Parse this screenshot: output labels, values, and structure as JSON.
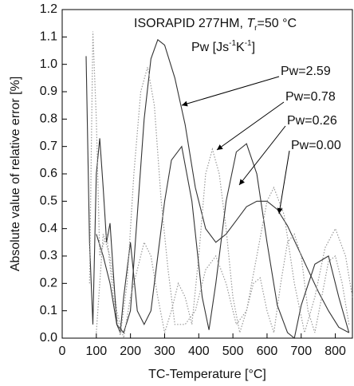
{
  "chart_data": {
    "type": "line",
    "title_parts": [
      "ISORAPID 277HM, ",
      "T",
      "r",
      "=50 °C"
    ],
    "subtitle_parts": [
      "Pw [Js",
      "-1",
      "K",
      "-1",
      "]"
    ],
    "x_label": "TC-Temperature [°C]",
    "y_label": "Absolute value of relative error [%]",
    "xlim": [
      0,
      850
    ],
    "ylim": [
      0,
      1.2
    ],
    "xticks": [
      0,
      100,
      200,
      300,
      400,
      500,
      600,
      700,
      800
    ],
    "yticks": [
      {
        "value": 0,
        "label": "0.0"
      },
      {
        "value": 0.1,
        "label": "0.1"
      },
      {
        "value": 0.2,
        "label": "0.2"
      },
      {
        "value": 0.3,
        "label": "0.3"
      },
      {
        "value": 0.4,
        "label": "0.4"
      },
      {
        "value": 0.5,
        "label": "0.5"
      },
      {
        "value": 0.6,
        "label": "0.6"
      },
      {
        "value": 0.7,
        "label": "0.7"
      },
      {
        "value": 0.8,
        "label": "0.8"
      },
      {
        "value": 0.9,
        "label": "0.9"
      },
      {
        "value": 1.0,
        "label": "1.0"
      },
      {
        "value": 1.1,
        "label": "1.1"
      },
      {
        "value": 1.2,
        "label": "1.2"
      }
    ],
    "series": [
      {
        "name": "Pw=2.59",
        "color": "#333333",
        "dash": "solid",
        "x": [
          100,
          120,
          140,
          160,
          180,
          200,
          220,
          240,
          260,
          280,
          300,
          330,
          360,
          390,
          420,
          450,
          480,
          510,
          540,
          570,
          600,
          630,
          660,
          690,
          720,
          750,
          780,
          810,
          840
        ],
        "values": [
          0.38,
          0.3,
          0.2,
          0.05,
          0.02,
          0.1,
          0.45,
          0.8,
          1.02,
          1.09,
          1.07,
          0.95,
          0.78,
          0.55,
          0.4,
          0.35,
          0.38,
          0.43,
          0.48,
          0.5,
          0.5,
          0.47,
          0.41,
          0.33,
          0.25,
          0.17,
          0.1,
          0.04,
          0.02
        ]
      },
      {
        "name": "Pw=0.78",
        "color": "#999999",
        "dash": "dotted",
        "x": [
          100,
          120,
          140,
          160,
          180,
          200,
          220,
          240,
          260,
          280,
          300,
          320,
          340,
          360,
          380,
          400,
          420,
          440,
          460,
          480,
          500,
          520,
          540,
          560,
          580,
          600,
          620,
          640,
          660,
          680,
          700,
          720,
          740,
          760,
          780,
          800,
          820,
          840
        ],
        "values": [
          0.02,
          0.38,
          0.3,
          0.1,
          0.0,
          0.15,
          0.25,
          0.35,
          0.3,
          0.15,
          0.02,
          0.1,
          0.2,
          0.15,
          0.05,
          0.3,
          0.6,
          0.69,
          0.6,
          0.4,
          0.15,
          0.02,
          0.1,
          0.2,
          0.22,
          0.1,
          0.02,
          0.2,
          0.35,
          0.38,
          0.3,
          0.1,
          0.02,
          0.15,
          0.28,
          0.3,
          0.2,
          0.05
        ]
      },
      {
        "name": "Pw=0.26",
        "color": "#333333",
        "dash": "solid",
        "x": [
          70,
          80,
          90,
          100,
          110,
          120,
          130,
          140,
          160,
          170,
          180,
          200,
          220,
          240,
          260,
          280,
          300,
          320,
          350,
          380,
          410,
          430,
          450,
          480,
          510,
          540,
          570,
          600,
          630,
          660,
          680,
          700,
          740,
          780,
          810,
          840
        ],
        "values": [
          1.03,
          0.35,
          0.05,
          0.6,
          0.73,
          0.55,
          0.35,
          0.42,
          0.05,
          0.02,
          0.15,
          0.35,
          0.1,
          0.05,
          0.1,
          0.3,
          0.5,
          0.65,
          0.7,
          0.5,
          0.15,
          0.03,
          0.2,
          0.5,
          0.68,
          0.71,
          0.6,
          0.35,
          0.12,
          0.02,
          0.0,
          0.12,
          0.27,
          0.3,
          0.15,
          0.02
        ]
      },
      {
        "name": "Pw=0.00",
        "color": "#999999",
        "dash": "dotted",
        "x": [
          80,
          90,
          100,
          110,
          130,
          150,
          170,
          190,
          210,
          230,
          250,
          270,
          290,
          310,
          330,
          360,
          390,
          420,
          450,
          480,
          510,
          540,
          570,
          600,
          620,
          650,
          680,
          710,
          740,
          770,
          800,
          830,
          850
        ],
        "values": [
          0.2,
          1.12,
          0.8,
          0.3,
          0.38,
          0.15,
          0.01,
          0.2,
          0.6,
          0.9,
          0.99,
          0.85,
          0.5,
          0.25,
          0.05,
          0.05,
          0.1,
          0.25,
          0.3,
          0.2,
          0.05,
          0.1,
          0.3,
          0.5,
          0.55,
          0.45,
          0.2,
          0.02,
          0.15,
          0.33,
          0.4,
          0.3,
          0.15
        ]
      }
    ]
  }
}
